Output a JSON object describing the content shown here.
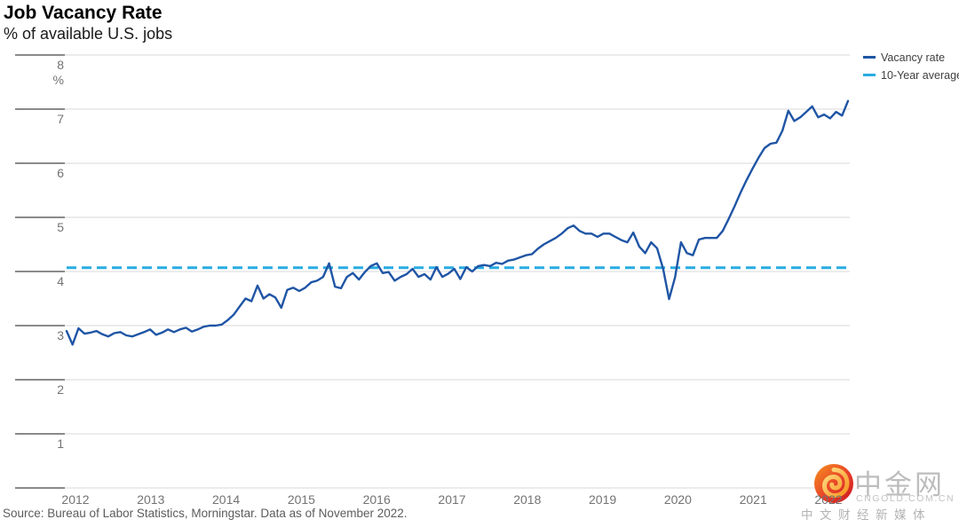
{
  "title": "Job Vacancy Rate",
  "subtitle": "% of available U.S. jobs",
  "source": "Source: Bureau of Labor Statistics, Morningstar. Data as of November 2022.",
  "legend": [
    {
      "label": "Vacancy rate",
      "color": "#1f55a5",
      "style": "solid"
    },
    {
      "label": "10-Year average",
      "color": "#29abe2",
      "style": "dashed"
    }
  ],
  "watermark": {
    "brand_cn": "中金网",
    "domain": "CNGOLD.COM.CN",
    "tagline": "中文财经新媒体"
  },
  "chart_data": {
    "type": "line",
    "title": "Job Vacancy Rate",
    "ylabel": "%",
    "percent_label": "%",
    "ylim": [
      0,
      8
    ],
    "yticks": [
      1,
      2,
      3,
      4,
      5,
      6,
      7,
      8
    ],
    "grid": true,
    "legend_position": "top-right",
    "x_start": "2011-12",
    "x_end": "2022-11",
    "year_labels": [
      "2012",
      "2013",
      "2014",
      "2015",
      "2016",
      "2017",
      "2018",
      "2019",
      "2020",
      "2021",
      "2022"
    ],
    "ten_year_average": 4.07,
    "series": [
      {
        "name": "Vacancy rate",
        "frequency": "monthly",
        "monthly_values": [
          2.9,
          2.65,
          2.95,
          2.85,
          2.87,
          2.9,
          2.84,
          2.8,
          2.86,
          2.88,
          2.82,
          2.8,
          2.84,
          2.88,
          2.93,
          2.83,
          2.87,
          2.93,
          2.88,
          2.93,
          2.96,
          2.89,
          2.93,
          2.98,
          3.0,
          3.0,
          3.02,
          3.1,
          3.2,
          3.35,
          3.5,
          3.45,
          3.74,
          3.5,
          3.58,
          3.52,
          3.33,
          3.66,
          3.7,
          3.64,
          3.7,
          3.8,
          3.83,
          3.9,
          4.15,
          3.72,
          3.69,
          3.9,
          3.97,
          3.85,
          3.99,
          4.1,
          4.15,
          3.97,
          3.99,
          3.83,
          3.9,
          3.95,
          4.05,
          3.9,
          3.95,
          3.85,
          4.08,
          3.9,
          3.96,
          4.05,
          3.86,
          4.08,
          4.0,
          4.1,
          4.12,
          4.1,
          4.16,
          4.14,
          4.2,
          4.22,
          4.26,
          4.3,
          4.32,
          4.42,
          4.5,
          4.56,
          4.62,
          4.7,
          4.8,
          4.85,
          4.75,
          4.7,
          4.7,
          4.64,
          4.7,
          4.7,
          4.64,
          4.58,
          4.54,
          4.72,
          4.46,
          4.34,
          4.54,
          4.43,
          4.05,
          3.49,
          3.89,
          4.54,
          4.34,
          4.3,
          4.59,
          4.62,
          4.62,
          4.62,
          4.75,
          4.97,
          5.21,
          5.46,
          5.69,
          5.9,
          6.1,
          6.28,
          6.36,
          6.38,
          6.6,
          6.97,
          6.78,
          6.85,
          6.95,
          7.05,
          6.85,
          6.9,
          6.83,
          6.95,
          6.88,
          7.15
        ]
      },
      {
        "name": "10-Year average",
        "frequency": "constant",
        "value": 4.07
      }
    ]
  }
}
